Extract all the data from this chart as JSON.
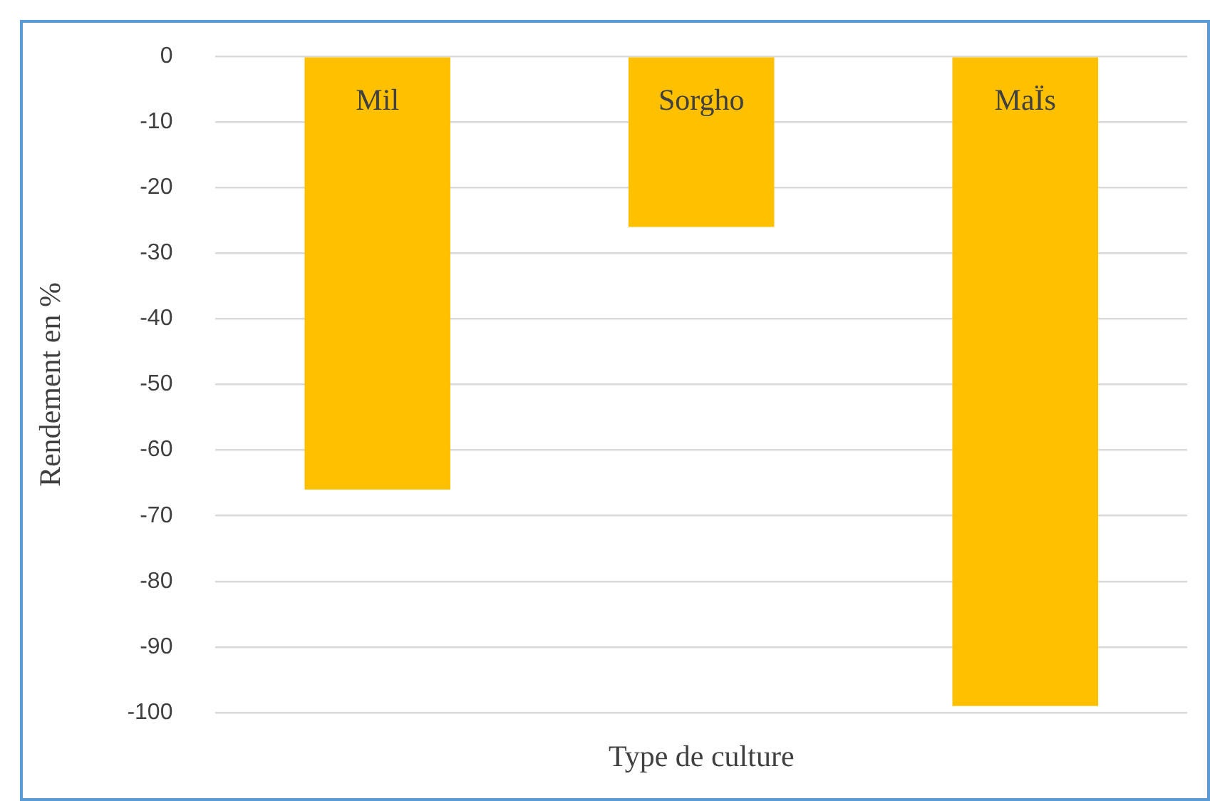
{
  "chart_data": {
    "type": "bar",
    "xlabel": "Type de culture",
    "ylabel": "Rendement en %",
    "categories": [
      "Mil",
      "Sorgho",
      "MaÏs"
    ],
    "values": [
      -66,
      -26,
      -99
    ],
    "color": "#ffc000",
    "ylim": [
      -100,
      0
    ],
    "yticks": [
      0,
      -10,
      -20,
      -30,
      -40,
      -50,
      -60,
      -70,
      -80,
      -90,
      -100
    ],
    "grid": "y",
    "legend": false
  }
}
